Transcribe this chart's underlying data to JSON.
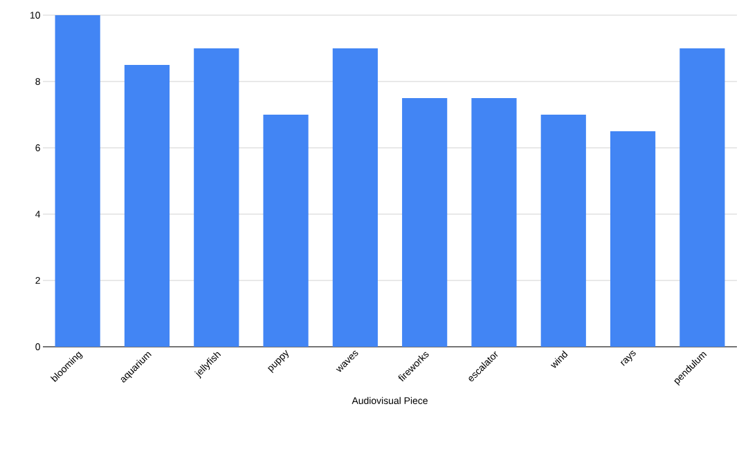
{
  "chart_data": {
    "type": "bar",
    "xlabel": "Audiovisual Piece",
    "categories": [
      "blooming",
      "aquarium",
      "jellyfish",
      "puppy",
      "waves",
      "fireworks",
      "escalator",
      "wind",
      "rays",
      "pendulum"
    ],
    "values": [
      10,
      8.5,
      9,
      7,
      9,
      7.5,
      7.5,
      7,
      6.5,
      9
    ],
    "color": "#4285f4",
    "ylim": [
      0,
      10
    ],
    "yticks": [
      0,
      2,
      4,
      6,
      8,
      10
    ],
    "grid": "y"
  }
}
